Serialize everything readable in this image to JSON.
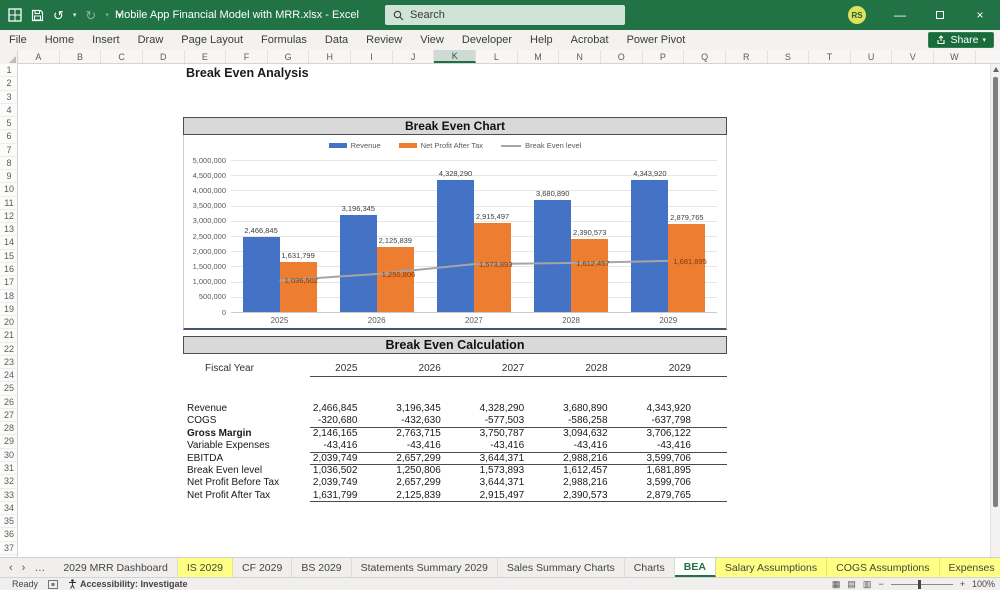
{
  "title_bar": {
    "document_title": "Mobile App Financial Model with MRR.xlsx  -  Excel",
    "search_placeholder": "Search",
    "avatar_initials": "RS"
  },
  "icons": {
    "undo": "↺",
    "redo": "↻",
    "caret_down": "▾",
    "minimize": "—",
    "close": "×",
    "tab_prev": "‹",
    "tab_next": "›",
    "more_dots": "…",
    "tab_add": "+",
    "zoom_out": "−",
    "zoom_in": "+",
    "view_normal": "▦",
    "view_layout": "▤",
    "view_break": "▥"
  },
  "ribbon": {
    "tabs": [
      "File",
      "Home",
      "Insert",
      "Draw",
      "Page Layout",
      "Formulas",
      "Data",
      "Review",
      "View",
      "Developer",
      "Help",
      "Acrobat",
      "Power Pivot"
    ],
    "share_label": "Share"
  },
  "grid": {
    "columns": [
      "A",
      "B",
      "C",
      "D",
      "E",
      "F",
      "G",
      "H",
      "I",
      "J",
      "K",
      "L",
      "M",
      "N",
      "O",
      "P",
      "Q",
      "R",
      "S",
      "T",
      "U",
      "V",
      "W"
    ],
    "selected_column": "K",
    "row_count": 38
  },
  "sheet": {
    "page_title": "Break Even Analysis",
    "chart_section_title": "Break Even Chart",
    "calc_section_title": "Break Even Calculation"
  },
  "chart_data": {
    "type": "bar",
    "title": "Break Even Chart",
    "categories": [
      "2025",
      "2026",
      "2027",
      "2028",
      "2029"
    ],
    "series": [
      {
        "name": "Revenue",
        "kind": "bar",
        "color": "#4472C4",
        "values": [
          2466845,
          3196345,
          4328290,
          3680890,
          4343920
        ]
      },
      {
        "name": "Net Profit After Tax",
        "kind": "bar",
        "color": "#ED7D31",
        "values": [
          1631799,
          2125839,
          2915497,
          2390573,
          2879765
        ]
      },
      {
        "name": "Break Even level",
        "kind": "line",
        "color": "#A5A5A5",
        "values": [
          1036502,
          1250806,
          1573893,
          1612457,
          1681895
        ]
      }
    ],
    "ylim": [
      0,
      5000000
    ],
    "ytick_step": 500000,
    "grid": true,
    "legend_position": "top",
    "bar_label_color": "#3f3f3f",
    "line_label_color": "#843C0C"
  },
  "table": {
    "header_label": "Fiscal Year",
    "years": [
      "2025",
      "2026",
      "2027",
      "2028",
      "2029"
    ],
    "rows": [
      {
        "label": "Revenue",
        "bold": false,
        "underline": false,
        "values": [
          "2,466,845",
          "3,196,345",
          "4,328,290",
          "3,680,890",
          "4,343,920"
        ]
      },
      {
        "label": "COGS",
        "bold": false,
        "underline": true,
        "values": [
          "-320,680",
          "-432,630",
          "-577,503",
          "-586,258",
          "-637,798"
        ]
      },
      {
        "label": "Gross Margin",
        "bold": true,
        "underline": false,
        "values": [
          "2,146,165",
          "2,763,715",
          "3,750,787",
          "3,094,632",
          "3,706,122"
        ]
      },
      {
        "label": "Variable Expenses",
        "bold": false,
        "underline": true,
        "values": [
          "-43,416",
          "-43,416",
          "-43,416",
          "-43,416",
          "-43,416"
        ]
      },
      {
        "label": "EBITDA",
        "bold": false,
        "underline": true,
        "values": [
          "2,039,749",
          "2,657,299",
          "3,644,371",
          "2,988,216",
          "3,599,706"
        ]
      },
      {
        "label": "Break Even level",
        "bold": false,
        "underline": false,
        "values": [
          "1,036,502",
          "1,250,806",
          "1,573,893",
          "1,612,457",
          "1,681,895"
        ]
      },
      {
        "label": "Net Profit Before Tax",
        "bold": false,
        "underline": false,
        "values": [
          "2,039,749",
          "2,657,299",
          "3,644,371",
          "2,988,216",
          "3,599,706"
        ]
      },
      {
        "label": "Net Profit After Tax",
        "bold": false,
        "underline": true,
        "values": [
          "1,631,799",
          "2,125,839",
          "2,915,497",
          "2,390,573",
          "2,879,765"
        ]
      }
    ]
  },
  "sheet_tabs": {
    "tabs": [
      {
        "label": "2029 MRR Dashboard",
        "style": "normal"
      },
      {
        "label": "IS 2029",
        "style": "yellow"
      },
      {
        "label": "CF 2029",
        "style": "normal"
      },
      {
        "label": "BS 2029",
        "style": "normal"
      },
      {
        "label": "Statements Summary 2029",
        "style": "normal"
      },
      {
        "label": "Sales Summary Charts",
        "style": "normal"
      },
      {
        "label": "Charts",
        "style": "normal"
      },
      {
        "label": "BEA",
        "style": "active"
      },
      {
        "label": "Salary Assumptions",
        "style": "yellow"
      },
      {
        "label": "COGS Assumptions",
        "style": "yellow"
      },
      {
        "label": "Expenses",
        "style": "yellow"
      }
    ]
  },
  "status_bar": {
    "mode": "Ready",
    "accessibility": "Accessibility: Investigate",
    "zoom_level": "100%"
  }
}
